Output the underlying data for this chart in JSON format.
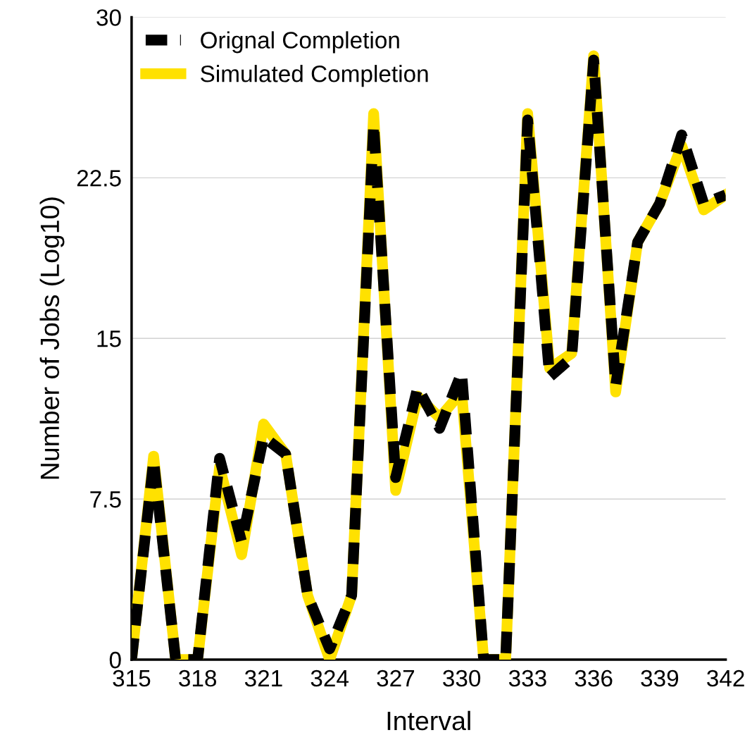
{
  "chart_data": {
    "type": "line",
    "xlabel": "Interval",
    "ylabel": "Number of Jobs (Log10)",
    "x": [
      315,
      316,
      317,
      318,
      319,
      320,
      321,
      322,
      323,
      324,
      325,
      326,
      327,
      328,
      329,
      330,
      331,
      332,
      333,
      334,
      335,
      336,
      337,
      338,
      339,
      340,
      341,
      342
    ],
    "series": [
      {
        "name": "Orignal Completion",
        "color": "#000000",
        "line_style": "dashed",
        "values": [
          0,
          9.3,
          0,
          0,
          9.4,
          5.5,
          10.4,
          9.6,
          3.0,
          0.5,
          3.0,
          25.0,
          8.5,
          12.7,
          10.8,
          13.4,
          0,
          0,
          25.2,
          13.2,
          14.1,
          28.0,
          12.8,
          19.5,
          21.3,
          24.5,
          21.3,
          21.7
        ]
      },
      {
        "name": "Simulated Completion",
        "color": "#ffe100",
        "line_style": "solid",
        "values": [
          0,
          9.5,
          0,
          0,
          9.0,
          4.9,
          11.0,
          9.6,
          3.0,
          0,
          3.0,
          25.5,
          7.9,
          12.3,
          11.3,
          12.5,
          0,
          0,
          25.5,
          13.6,
          14.3,
          28.2,
          12.5,
          19.5,
          21.3,
          24.0,
          21.0,
          21.7
        ]
      }
    ],
    "xlim": [
      315,
      342
    ],
    "xticks": [
      315,
      318,
      321,
      324,
      327,
      330,
      333,
      336,
      339,
      342
    ],
    "ylim": [
      0,
      30
    ],
    "yticks": [
      0,
      7.5,
      15,
      22.5,
      30
    ],
    "grid": "y",
    "legend": "top left",
    "marker": "none"
  }
}
